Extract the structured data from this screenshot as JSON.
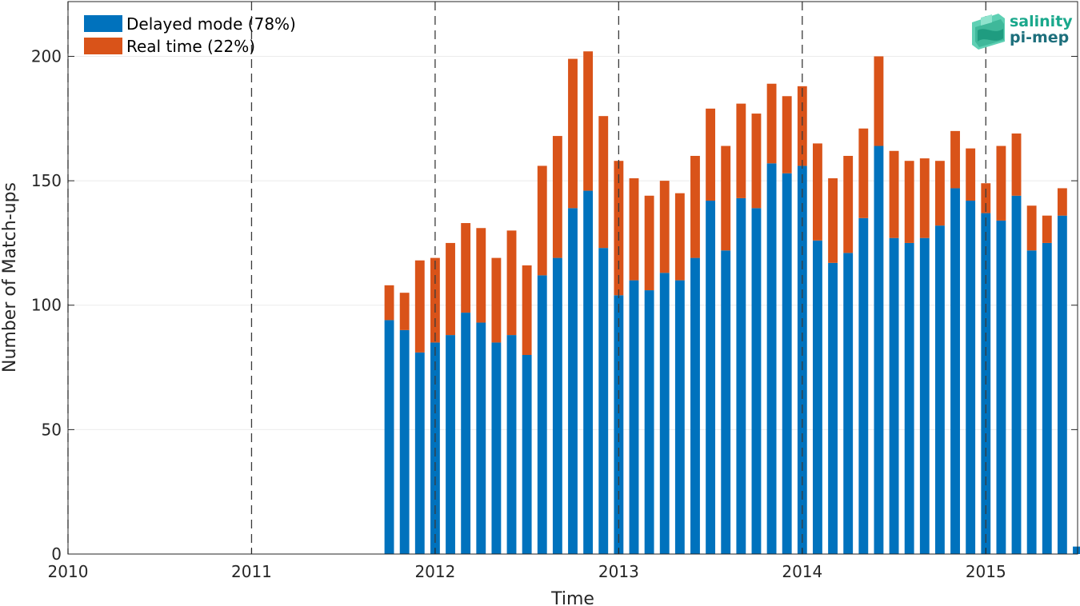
{
  "chart_data": {
    "type": "bar",
    "stacked": true,
    "xlabel": "Time",
    "ylabel": "Number of Match-ups",
    "xlim": [
      2010,
      2015.5
    ],
    "ylim": [
      0,
      222
    ],
    "x_ticks": [
      "2010",
      "2011",
      "2012",
      "2013",
      "2014",
      "2015"
    ],
    "y_ticks": [
      "0",
      "50",
      "100",
      "150",
      "200"
    ],
    "y_tick_values": [
      0,
      50,
      100,
      150,
      200
    ],
    "year_lines": [
      2010,
      2011,
      2012,
      2013,
      2014,
      2015
    ],
    "grid": "horizontal",
    "legend_position": "top-left",
    "x": [
      "2011-10",
      "2011-11",
      "2011-12",
      "2012-01",
      "2012-02",
      "2012-03",
      "2012-04",
      "2012-05",
      "2012-06",
      "2012-07",
      "2012-08",
      "2012-09",
      "2012-10",
      "2012-11",
      "2012-12",
      "2013-01",
      "2013-02",
      "2013-03",
      "2013-04",
      "2013-05",
      "2013-06",
      "2013-07",
      "2013-08",
      "2013-09",
      "2013-10",
      "2013-11",
      "2013-12",
      "2014-01",
      "2014-02",
      "2014-03",
      "2014-04",
      "2014-05",
      "2014-06",
      "2014-07",
      "2014-08",
      "2014-09",
      "2014-10",
      "2014-11",
      "2014-12",
      "2015-01",
      "2015-02",
      "2015-03",
      "2015-04",
      "2015-05",
      "2015-06",
      "2015-07"
    ],
    "series": [
      {
        "name": "Delayed mode (78%)",
        "color": "#0072BD",
        "values": [
          94,
          90,
          81,
          85,
          88,
          97,
          93,
          85,
          88,
          80,
          112,
          119,
          139,
          146,
          123,
          104,
          110,
          106,
          113,
          110,
          119,
          142,
          122,
          143,
          139,
          157,
          153,
          156,
          126,
          117,
          121,
          135,
          164,
          127,
          125,
          127,
          132,
          147,
          142,
          137,
          134,
          144,
          122,
          125,
          136,
          3
        ]
      },
      {
        "name": "Real time (22%)",
        "color": "#D95319",
        "values": [
          14,
          15,
          37,
          34,
          37,
          36,
          38,
          34,
          42,
          36,
          44,
          49,
          60,
          56,
          53,
          54,
          41,
          38,
          37,
          35,
          41,
          37,
          42,
          38,
          38,
          32,
          31,
          32,
          39,
          34,
          39,
          36,
          36,
          35,
          33,
          32,
          26,
          23,
          21,
          12,
          30,
          25,
          18,
          11,
          11,
          0
        ]
      }
    ]
  },
  "logo": {
    "line1": "salinity",
    "line2": "pi-mep"
  }
}
